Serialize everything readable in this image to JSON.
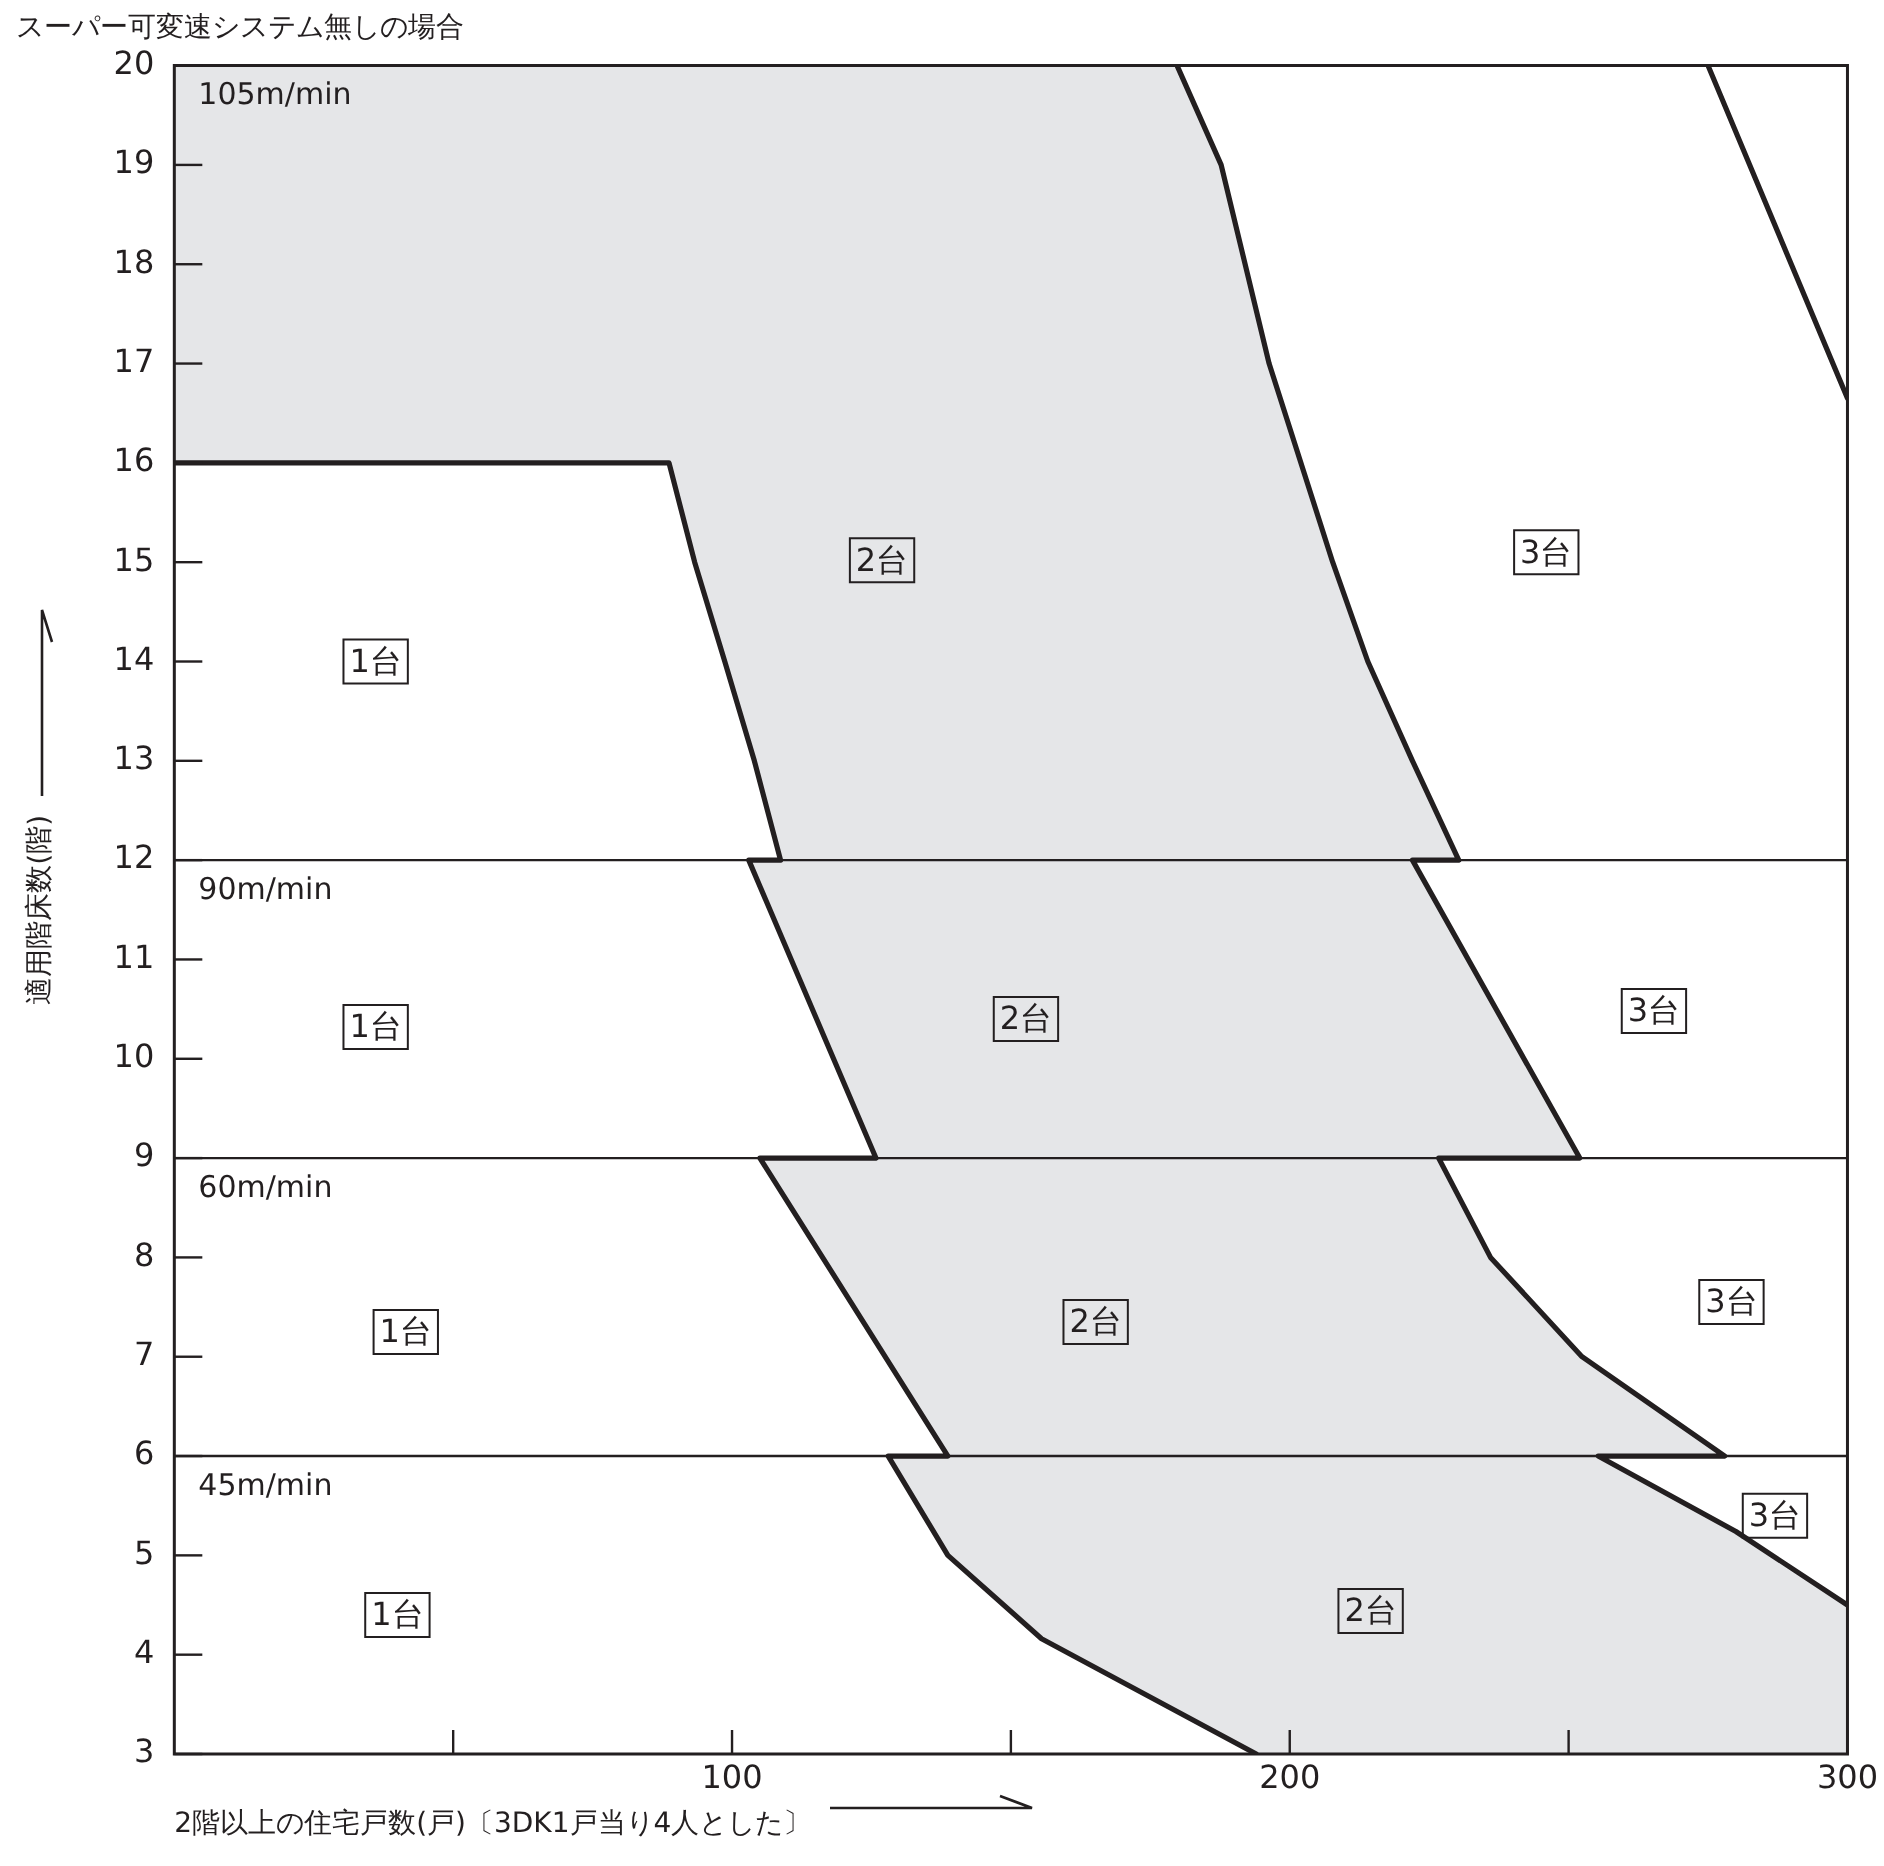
{
  "chart_data": {
    "type": "line",
    "title": "スーパー可変速システム無しの場合",
    "xlabel": "2階以上の住宅戸数(戸)〔3DK1戸当り4人とした〕",
    "ylabel": "適用階床数(階)",
    "xlim": [
      0,
      300
    ],
    "ylim": [
      3,
      20
    ],
    "xticks": [
      {
        "value": 50,
        "label": null
      },
      100,
      {
        "value": 150,
        "label": null
      },
      200,
      {
        "value": 250,
        "label": null
      },
      300
    ],
    "yticks": [
      3,
      4,
      5,
      6,
      7,
      8,
      9,
      10,
      11,
      12,
      13,
      14,
      15,
      16,
      17,
      18,
      19,
      20
    ],
    "grid": false,
    "legend": false,
    "marker": "none",
    "line_style": "solid",
    "series": [
      {
        "type": "area",
        "color": "#e5e6e8",
        "x": [
          0,
          179.8,
          187.7,
          196.3,
          207.7,
          214,
          222,
          230.3,
          108.7,
          104,
          98.7,
          93.3,
          88.7,
          0
        ],
        "values": [
          20,
          20,
          19,
          17,
          15,
          14,
          13,
          12,
          12,
          13,
          14,
          15,
          16,
          16
        ]
      },
      {
        "type": "area",
        "color": "#e5e6e8",
        "x": [
          103,
          222,
          252,
          125.8
        ],
        "values": [
          12,
          12,
          9,
          9
        ]
      },
      {
        "type": "area",
        "color": "#e5e6e8",
        "x": [
          105,
          226.7,
          236,
          252.4,
          278,
          138.7
        ],
        "values": [
          9,
          9,
          8,
          7,
          6,
          6
        ]
      },
      {
        "type": "area",
        "color": "#e5e6e8",
        "x": [
          128,
          255.3,
          280,
          300,
          300,
          194,
          155.5,
          138.7
        ],
        "values": [
          6,
          6,
          5.24,
          4.5,
          3,
          3,
          4.16,
          5
        ]
      },
      {
        "color": "#231f20",
        "x": [
          0,
          88.7,
          93.3,
          98.7,
          104,
          108.7,
          103,
          125.8,
          105,
          138.7,
          128,
          138.7,
          155.5,
          194
        ],
        "values": [
          16,
          16,
          15,
          14,
          13,
          12,
          12,
          9,
          9,
          6,
          6,
          5,
          4.16,
          3
        ]
      },
      {
        "color": "#231f20",
        "x": [
          179.8,
          187.7,
          196.3,
          207.7,
          214,
          222,
          230.3,
          222,
          252,
          226.7,
          236,
          252.4,
          278,
          255.3,
          280,
          300
        ],
        "values": [
          20,
          19,
          17,
          15,
          14,
          13,
          12,
          12,
          9,
          9,
          8,
          7,
          6,
          6,
          5.24,
          4.5
        ]
      },
      {
        "color": "#231f20",
        "x": [
          275,
          300
        ],
        "values": [
          20,
          16.65
        ]
      }
    ],
    "ref_lines": [
      {
        "axis": "y",
        "value": 12,
        "label": "90m/min"
      },
      {
        "axis": "y",
        "value": 9,
        "label": "60m/min"
      },
      {
        "axis": "y",
        "value": 6,
        "label": "45m/min"
      }
    ],
    "annotations": [
      "105m/min",
      {
        "text": "1台",
        "x": 36.1,
        "y": 14
      },
      {
        "text": "2台",
        "x": 126.9,
        "y": 15.02
      },
      {
        "text": "3台",
        "x": 246,
        "y": 15.1
      },
      {
        "text": "1台",
        "x": 36.1,
        "y": 10.32
      },
      {
        "text": "2台",
        "x": 152.7,
        "y": 10.4
      },
      {
        "text": "3台",
        "x": 265.3,
        "y": 10.48
      },
      {
        "text": "1台",
        "x": 41.5,
        "y": 7.25
      },
      {
        "text": "2台",
        "x": 165.2,
        "y": 7.35
      },
      {
        "text": "3台",
        "x": 279.2,
        "y": 7.55
      },
      {
        "text": "1台",
        "x": 40,
        "y": 4.4
      },
      {
        "text": "2台",
        "x": 214.5,
        "y": 4.44
      },
      {
        "text": "3台",
        "x": 287,
        "y": 5.4
      }
    ]
  }
}
